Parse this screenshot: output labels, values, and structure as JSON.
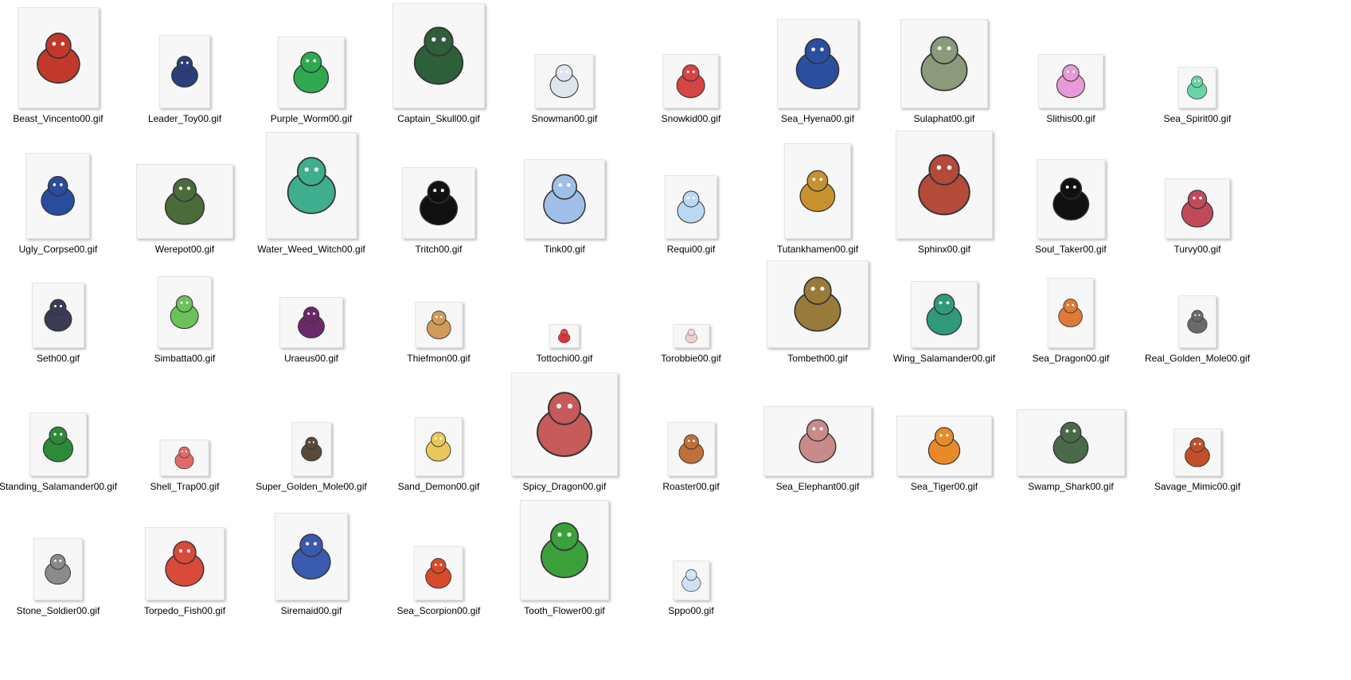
{
  "window": {
    "background": "#ffffff"
  },
  "files": [
    {
      "name": "Beast_Vincento00.gif",
      "icon": "beast-sprite",
      "color": "#c0392b"
    },
    {
      "name": "Leader_Toy00.gif",
      "icon": "toy-sprite",
      "color": "#2c3e7a"
    },
    {
      "name": "Purple_Worm00.gif",
      "icon": "worm-sprite",
      "color": "#2fa84f"
    },
    {
      "name": "Captain_Skull00.gif",
      "icon": "skull-pirate-sprite",
      "color": "#2e5e3a"
    },
    {
      "name": "Snowman00.gif",
      "icon": "snowman-sprite",
      "color": "#dfe6ee"
    },
    {
      "name": "Snowkid00.gif",
      "icon": "snowkid-sprite",
      "color": "#d64545"
    },
    {
      "name": "Sea_Hyena00.gif",
      "icon": "hyena-sprite",
      "color": "#2b4fa0"
    },
    {
      "name": "Sulaphat00.gif",
      "icon": "turtle-sprite",
      "color": "#8a9a7a"
    },
    {
      "name": "Slithis00.gif",
      "icon": "slime-sprite",
      "color": "#e79ad6"
    },
    {
      "name": "Sea_Spirit00.gif",
      "icon": "spirit-sprite",
      "color": "#6ad3a8"
    },
    {
      "name": "Ugly_Corpse00.gif",
      "icon": "corpse-sprite",
      "color": "#2a4c9c"
    },
    {
      "name": "Werepot00.gif",
      "icon": "pot-sprite",
      "color": "#4b6b3a"
    },
    {
      "name": "Water_Weed_Witch00.gif",
      "icon": "witch-sprite",
      "color": "#3fae8e"
    },
    {
      "name": "Tritch00.gif",
      "icon": "shadow-sprite",
      "color": "#111111"
    },
    {
      "name": "Tink00.gif",
      "icon": "whale-sprite",
      "color": "#9fbfe8"
    },
    {
      "name": "Requi00.gif",
      "icon": "ghost-sprite",
      "color": "#bcd8f2"
    },
    {
      "name": "Tutankhamen00.gif",
      "icon": "pharaoh-sprite",
      "color": "#c7922e"
    },
    {
      "name": "Sphinx00.gif",
      "icon": "sphinx-sprite",
      "color": "#b34a3a"
    },
    {
      "name": "Soul_Taker00.gif",
      "icon": "shadow-sprite",
      "color": "#111111"
    },
    {
      "name": "Turvy00.gif",
      "icon": "bat-sprite",
      "color": "#c04a5a"
    },
    {
      "name": "Seth00.gif",
      "icon": "cat-sprite",
      "color": "#3b3b55"
    },
    {
      "name": "Simbatta00.gif",
      "icon": "plant-sprite",
      "color": "#6bc25a"
    },
    {
      "name": "Uraeus00.gif",
      "icon": "snake-sprite",
      "color": "#6a2a6a"
    },
    {
      "name": "Thiefmon00.gif",
      "icon": "monkey-sprite",
      "color": "#d29b5a"
    },
    {
      "name": "Tottochi00.gif",
      "icon": "fluff-sprite",
      "color": "#d43a3a"
    },
    {
      "name": "Torobbie00.gif",
      "icon": "mouse-sprite",
      "color": "#f0d0d0"
    },
    {
      "name": "Tombeth00.gif",
      "icon": "golem-sprite",
      "color": "#9a7a3a"
    },
    {
      "name": "Wing_Salamander00.gif",
      "icon": "salamander-sprite",
      "color": "#2f9a7a"
    },
    {
      "name": "Sea_Dragon00.gif",
      "icon": "seahorse-sprite",
      "color": "#e07a3a"
    },
    {
      "name": "Real_Golden_Mole00.gif",
      "icon": "mole-sprite",
      "color": "#6a6a6a"
    },
    {
      "name": "Standing_Salamander00.gif",
      "icon": "salamander-sprite",
      "color": "#2e8a3a"
    },
    {
      "name": "Shell_Trap00.gif",
      "icon": "shell-sprite",
      "color": "#e06a6a"
    },
    {
      "name": "Super_Golden_Mole00.gif",
      "icon": "mole-sprite",
      "color": "#5a4a3a"
    },
    {
      "name": "Sand_Demon00.gif",
      "icon": "sand-sprite",
      "color": "#e8c85a"
    },
    {
      "name": "Spicy_Dragon00.gif",
      "icon": "dragon-sprite",
      "color": "#c75a5a"
    },
    {
      "name": "Roaster00.gif",
      "icon": "rooster-sprite",
      "color": "#c0703a"
    },
    {
      "name": "Sea_Elephant00.gif",
      "icon": "elephant-seal-sprite",
      "color": "#c98a8a"
    },
    {
      "name": "Sea_Tiger00.gif",
      "icon": "tiger-seal-sprite",
      "color": "#e88a2a"
    },
    {
      "name": "Swamp_Shark00.gif",
      "icon": "crocodile-sprite",
      "color": "#4a6a4a"
    },
    {
      "name": "Savage_Mimic00.gif",
      "icon": "chest-sprite",
      "color": "#c0502a"
    },
    {
      "name": "Stone_Soldier00.gif",
      "icon": "soldier-sprite",
      "color": "#8a8a8a"
    },
    {
      "name": "Torpedo_Fish00.gif",
      "icon": "fish-sprite",
      "color": "#d84a3a"
    },
    {
      "name": "Siremaid00.gif",
      "icon": "mermaid-sprite",
      "color": "#3a5ab0"
    },
    {
      "name": "Sea_Scorpion00.gif",
      "icon": "scorpion-sprite",
      "color": "#d84a2a"
    },
    {
      "name": "Tooth_Flower00.gif",
      "icon": "flower-sprite",
      "color": "#3aa03a"
    },
    {
      "name": "Sppo00.gif",
      "icon": "bunny-sprite",
      "color": "#cfe0f5"
    }
  ]
}
